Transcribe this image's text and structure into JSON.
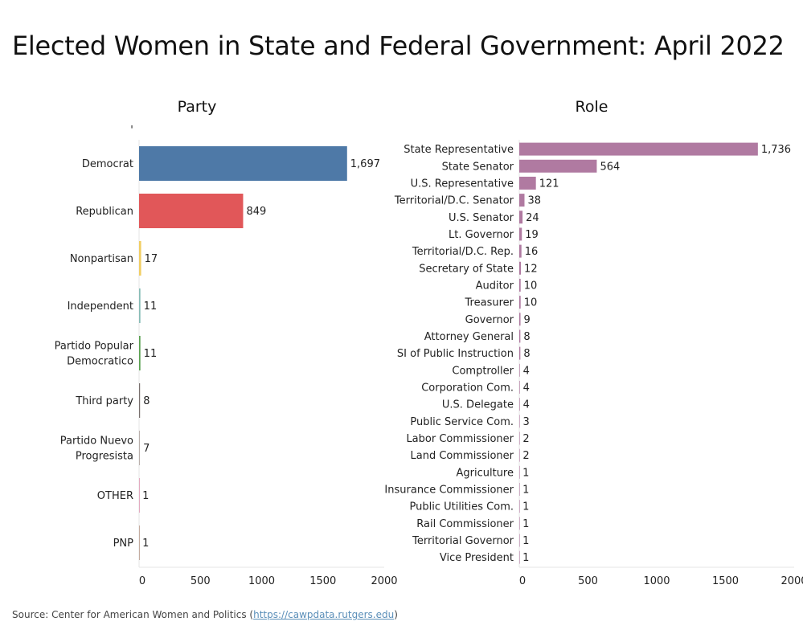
{
  "title": "Elected Women in State and Federal Government: April 2022",
  "source": {
    "prefix": "Source: Center for American Women and Politics (",
    "link_text": "https://cawpdata.rutgers.edu",
    "suffix": ")"
  },
  "chart_data": [
    {
      "type": "bar",
      "orientation": "horizontal",
      "title": "Party",
      "stray_mark": "'",
      "categories": [
        [
          "Democrat"
        ],
        [
          "Republican"
        ],
        [
          "Nonpartisan"
        ],
        [
          "Independent"
        ],
        [
          "Partido Popular",
          "Democratico"
        ],
        [
          "Third party"
        ],
        [
          "Partido Nuevo",
          "Progresista"
        ],
        [
          "OTHER"
        ],
        [
          "PNP"
        ]
      ],
      "values": [
        1697,
        849,
        17,
        11,
        11,
        8,
        7,
        1,
        1
      ],
      "value_labels": [
        "1,697",
        "849",
        "17",
        "11",
        "11",
        "8",
        "7",
        "1",
        "1"
      ],
      "colors": [
        "#4e79a7",
        "#e15759",
        "#f1ce63",
        "#86bcb6",
        "#59a14f",
        "#79706e",
        "#bab0ac",
        "#d37295",
        "#9d7660"
      ],
      "ticks": [
        0,
        500,
        1000,
        1500,
        2000
      ],
      "xlim": [
        0,
        2000
      ]
    },
    {
      "type": "bar",
      "orientation": "horizontal",
      "title": "Role",
      "categories": [
        [
          "State Representative"
        ],
        [
          "State Senator"
        ],
        [
          "U.S. Representative"
        ],
        [
          "Territorial/D.C. Senator"
        ],
        [
          "U.S. Senator"
        ],
        [
          "Lt. Governor"
        ],
        [
          "Territorial/D.C. Rep."
        ],
        [
          "Secretary of State"
        ],
        [
          "Auditor"
        ],
        [
          "Treasurer"
        ],
        [
          "Governor"
        ],
        [
          "Attorney General"
        ],
        [
          "SI of Public Instruction"
        ],
        [
          "Comptroller"
        ],
        [
          "Corporation Com."
        ],
        [
          "U.S. Delegate"
        ],
        [
          "Public Service Com."
        ],
        [
          "Labor Commissioner"
        ],
        [
          "Land Commissioner"
        ],
        [
          "Agriculture"
        ],
        [
          "Insurance Commissioner"
        ],
        [
          "Public Utilities Com."
        ],
        [
          "Rail Commissioner"
        ],
        [
          "Territorial Governor"
        ],
        [
          "Vice President"
        ]
      ],
      "values": [
        1736,
        564,
        121,
        38,
        24,
        19,
        16,
        12,
        10,
        10,
        9,
        8,
        8,
        4,
        4,
        4,
        3,
        2,
        2,
        1,
        1,
        1,
        1,
        1,
        1
      ],
      "value_labels": [
        "1,736",
        "564",
        "121",
        "38",
        "24",
        "19",
        "16",
        "12",
        "10",
        "10",
        "9",
        "8",
        "8",
        "4",
        "4",
        "4",
        "3",
        "2",
        "2",
        "1",
        "1",
        "1",
        "1",
        "1",
        "1"
      ],
      "bar_color": "#b07aa1",
      "ticks": [
        0,
        500,
        1000,
        1500,
        2000
      ],
      "xlim": [
        0,
        2000
      ]
    }
  ]
}
